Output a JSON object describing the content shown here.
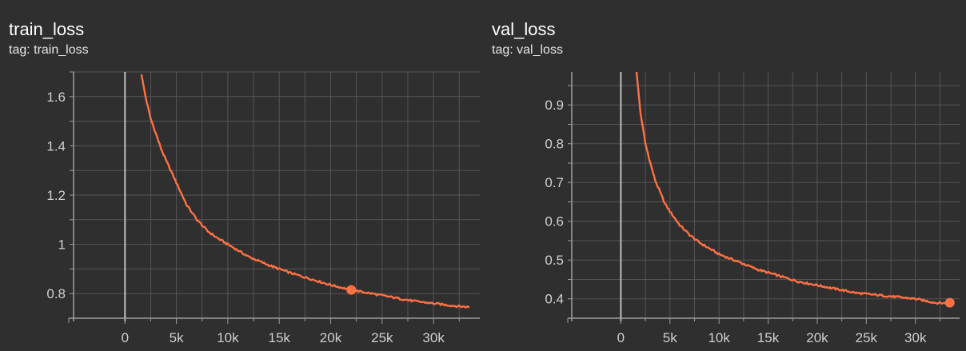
{
  "charts": [
    {
      "title": "train_loss",
      "tag": "tag: train_loss",
      "colors": {
        "line": "#ff7043",
        "grid": "#555555",
        "axis": "#9e9e9e",
        "tick_text": "#cfcfcf",
        "background": "#2f2f2f"
      }
    },
    {
      "title": "val_loss",
      "tag": "tag: val_loss",
      "colors": {
        "line": "#ff7043",
        "grid": "#555555",
        "axis": "#9e9e9e",
        "tick_text": "#cfcfcf",
        "background": "#2f2f2f"
      }
    }
  ],
  "chart_data": [
    {
      "type": "line",
      "title": "train_loss",
      "xlabel": "",
      "ylabel": "",
      "xlim": [
        -5000,
        34500
      ],
      "ylim": [
        0.7,
        1.7
      ],
      "x_ticks": [
        0,
        5000,
        10000,
        15000,
        20000,
        25000,
        30000
      ],
      "x_tick_labels": [
        "0",
        "5k",
        "10k",
        "15k",
        "20k",
        "25k",
        "30k"
      ],
      "y_ticks": [
        0.8,
        1.0,
        1.2,
        1.4,
        1.6
      ],
      "y_tick_labels": [
        "0.8",
        "1",
        "1.2",
        "1.4",
        "1.6"
      ],
      "grid": true,
      "highlight_point": {
        "x": 22000,
        "y": 0.815
      },
      "series": [
        {
          "x": [
            1600,
            2000,
            2500,
            3000,
            3500,
            4000,
            5000,
            6000,
            7000,
            8000,
            9000,
            10000,
            12000,
            14000,
            16000,
            18000,
            20000,
            22000,
            24000,
            26000,
            28000,
            30000,
            32000,
            33500
          ],
          "y": [
            1.69,
            1.6,
            1.51,
            1.45,
            1.39,
            1.34,
            1.25,
            1.16,
            1.1,
            1.055,
            1.025,
            1.0,
            0.95,
            0.915,
            0.885,
            0.86,
            0.835,
            0.815,
            0.8,
            0.785,
            0.77,
            0.76,
            0.75,
            0.745
          ]
        }
      ]
    },
    {
      "type": "line",
      "title": "val_loss",
      "xlabel": "",
      "ylabel": "",
      "xlim": [
        -5000,
        34500
      ],
      "ylim": [
        0.35,
        0.985
      ],
      "x_ticks": [
        0,
        5000,
        10000,
        15000,
        20000,
        25000,
        30000
      ],
      "x_tick_labels": [
        "0",
        "5k",
        "10k",
        "15k",
        "20k",
        "25k",
        "30k"
      ],
      "y_ticks": [
        0.4,
        0.5,
        0.6,
        0.7,
        0.8,
        0.9
      ],
      "y_tick_labels": [
        "0.4",
        "0.5",
        "0.6",
        "0.7",
        "0.8",
        "0.9"
      ],
      "grid": true,
      "highlight_point": {
        "x": 33500,
        "y": 0.39
      },
      "series": [
        {
          "x": [
            1600,
            2000,
            2500,
            3000,
            3500,
            4000,
            4500,
            5000,
            6000,
            7000,
            8000,
            9000,
            10000,
            12000,
            14000,
            16000,
            18000,
            20000,
            22000,
            24000,
            26000,
            28000,
            30000,
            32000,
            33500
          ],
          "y": [
            0.985,
            0.88,
            0.8,
            0.75,
            0.705,
            0.675,
            0.645,
            0.625,
            0.59,
            0.565,
            0.545,
            0.53,
            0.515,
            0.495,
            0.475,
            0.46,
            0.445,
            0.435,
            0.425,
            0.415,
            0.41,
            0.405,
            0.4,
            0.39,
            0.388
          ]
        }
      ]
    }
  ]
}
